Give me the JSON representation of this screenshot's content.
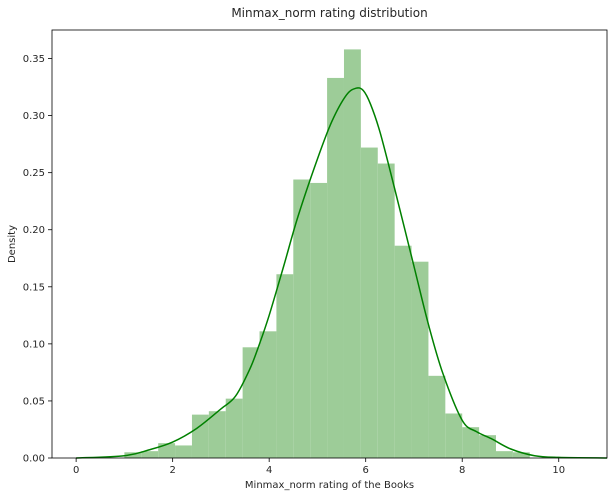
{
  "chart_data": {
    "type": "bar",
    "title": "Minmax_norm rating distribution",
    "xlabel": "Minmax_norm rating of the Books",
    "ylabel": "Density",
    "xlim": [
      -0.5,
      11.0
    ],
    "ylim": [
      0,
      0.375
    ],
    "xticks": [
      0,
      2,
      4,
      6,
      8,
      10
    ],
    "yticks": [
      0.0,
      0.05,
      0.1,
      0.15,
      0.2,
      0.25,
      0.3,
      0.35
    ],
    "grid": false,
    "legend": "none",
    "colors": {
      "bars": "#9dcc98",
      "kde": "#008000"
    },
    "histogram": {
      "bin_edges": [
        1.0,
        1.35,
        1.7,
        2.05,
        2.4,
        2.75,
        3.1,
        3.45,
        3.8,
        4.15,
        4.5,
        4.85,
        5.2,
        5.55,
        5.9,
        6.25,
        6.6,
        6.95,
        7.3,
        7.65,
        8.0,
        8.35,
        8.7,
        9.05,
        9.4,
        9.75
      ],
      "density": [
        0.005,
        0.006,
        0.013,
        0.011,
        0.038,
        0.041,
        0.052,
        0.097,
        0.111,
        0.161,
        0.244,
        0.241,
        0.333,
        0.358,
        0.272,
        0.258,
        0.186,
        0.172,
        0.072,
        0.039,
        0.027,
        0.02,
        0.006,
        0.005,
        0.0
      ]
    },
    "kde": {
      "x": [
        0.0,
        1.0,
        1.5,
        2.0,
        2.5,
        3.0,
        3.3,
        3.6,
        3.8,
        4.0,
        4.3,
        4.6,
        5.0,
        5.3,
        5.6,
        5.8,
        5.95,
        6.1,
        6.3,
        6.6,
        7.0,
        7.3,
        7.6,
        8.0,
        8.3,
        8.6,
        9.0,
        9.5,
        10.0,
        11.0
      ],
      "y": [
        0.0,
        0.002,
        0.007,
        0.014,
        0.026,
        0.043,
        0.054,
        0.078,
        0.1,
        0.125,
        0.168,
        0.212,
        0.262,
        0.295,
        0.318,
        0.324,
        0.322,
        0.31,
        0.285,
        0.236,
        0.168,
        0.117,
        0.074,
        0.033,
        0.023,
        0.017,
        0.008,
        0.002,
        0.0005,
        0.0
      ]
    }
  }
}
